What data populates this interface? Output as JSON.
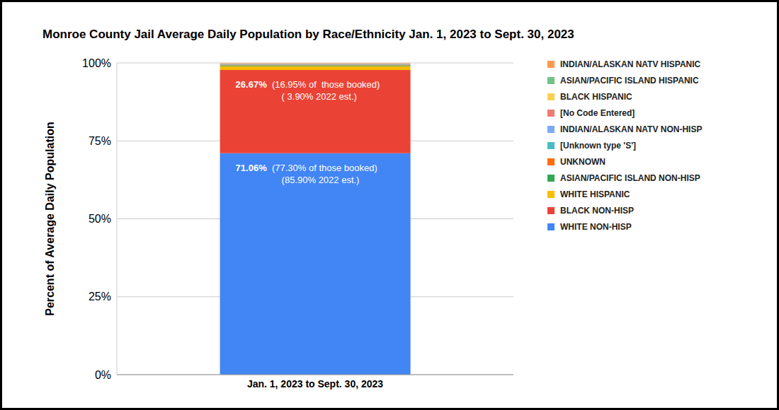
{
  "chart_data": {
    "type": "bar",
    "title": "Monroe County Jail Average Daily Population by Race/Ethnicity Jan. 1, 2023 to Sept. 30, 2023",
    "y_label": "Percent of Average Daily Population",
    "categories": [
      "Jan. 1, 2023 to Sept. 30, 2023"
    ],
    "stacked": true,
    "grid": true,
    "legend": "right",
    "ylim": [
      0,
      100
    ],
    "yticks": [
      {
        "value": 0,
        "label": "0%"
      },
      {
        "value": 25,
        "label": "25%"
      },
      {
        "value": 50,
        "label": "50%"
      },
      {
        "value": 75,
        "label": "75%"
      },
      {
        "value": 100,
        "label": "100%"
      }
    ],
    "series": [
      {
        "name": "WHITE NON-HISP",
        "color": "#4285f4",
        "values": [
          71.06
        ],
        "value_labels": [
          "71.06%  (77.30% of those booked)\n(85.90% 2022 est.)"
        ]
      },
      {
        "name": "BLACK NON-HISP",
        "color": "#ea4335",
        "values": [
          26.67
        ],
        "value_labels": [
          "26.67%  (16.95% of  those booked)\n( 3.90% 2022 est.)"
        ]
      },
      {
        "name": "WHITE HISPANIC",
        "color": "#fbbc04",
        "values": [
          1.2
        ]
      },
      {
        "name": "ASIAN/PACIFIC ISLAND NON-HISP",
        "color": "#34a853",
        "values": [
          0.3
        ]
      },
      {
        "name": "UNKNOWN",
        "color": "#ff6d01",
        "values": [
          0.2
        ]
      },
      {
        "name": "[Unknown type 'S']",
        "color": "#46bdc6",
        "values": [
          0.1
        ]
      },
      {
        "name": "INDIAN/ALASKAN NATV NON-HISP",
        "color": "#7baaf7",
        "values": [
          0.2
        ]
      },
      {
        "name": "[No Code Entered]",
        "color": "#f07b72",
        "values": [
          0.1
        ]
      },
      {
        "name": "BLACK HISPANIC",
        "color": "#fcd04f",
        "values": [
          0.1
        ]
      },
      {
        "name": "ASIAN/PACIFIC ISLAND HISPANIC",
        "color": "#71c287",
        "values": [
          0.04
        ]
      },
      {
        "name": "INDIAN/ALASKAN NATV HISPANIC",
        "color": "#ff994d",
        "values": [
          0.03
        ]
      }
    ]
  }
}
